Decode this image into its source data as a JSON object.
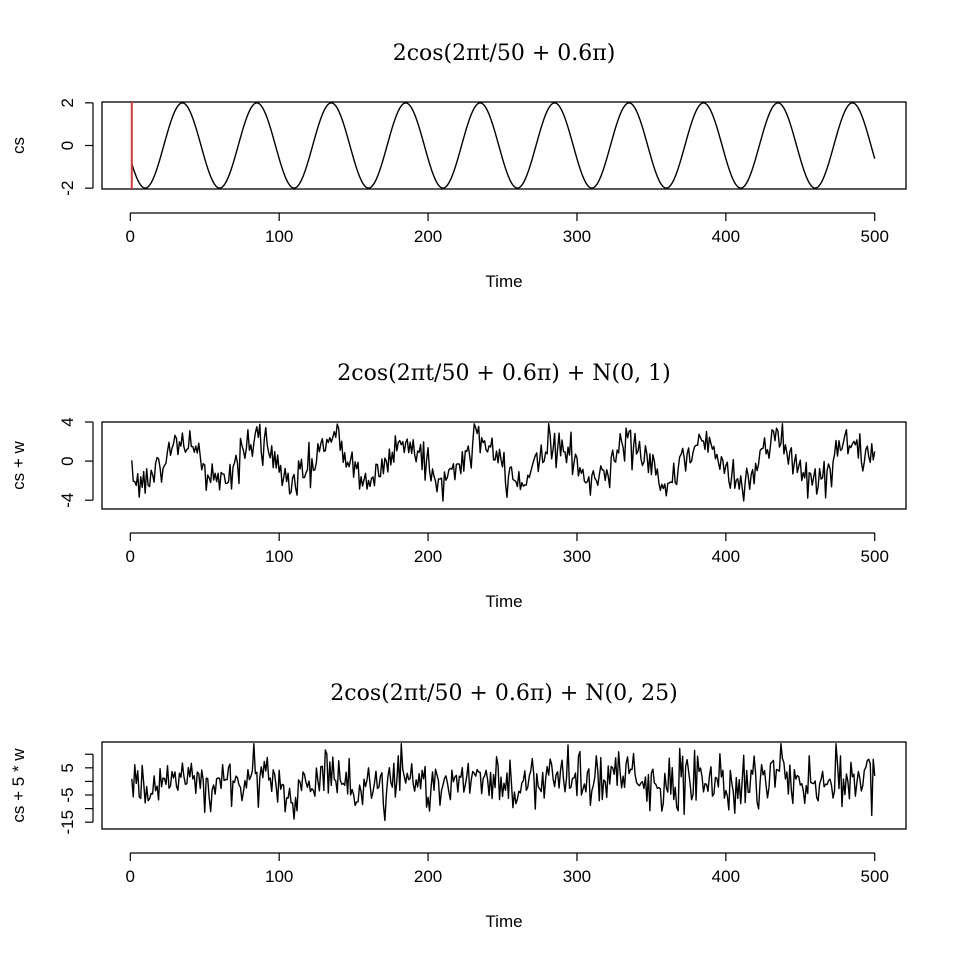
{
  "chart_data": [
    {
      "type": "line",
      "title": "2cos(2πt/50 + 0.6π)",
      "xlabel": "Time",
      "ylabel": "cs",
      "xlim": [
        -19,
        521
      ],
      "ylim": [
        -2.04,
        2.04
      ],
      "x_ticks": [
        0,
        100,
        200,
        300,
        400,
        500
      ],
      "y_ticks": [
        -2,
        0,
        2
      ],
      "grid": false,
      "n": 500,
      "signal": {
        "amplitude": 2,
        "period": 50,
        "phase_pi": 0.6
      },
      "noise_sd": 0,
      "vline": {
        "x": 1,
        "color": "#cd3b3b"
      },
      "line_color": "#000000"
    },
    {
      "type": "line",
      "title": "2cos(2πt/50 + 0.6π) + N(0, 1)",
      "xlabel": "Time",
      "ylabel": "cs + w",
      "xlim": [
        -19,
        521
      ],
      "ylim": [
        -4.9,
        4.0
      ],
      "x_ticks": [
        0,
        100,
        200,
        300,
        400,
        500
      ],
      "y_ticks": [
        -4,
        0,
        4
      ],
      "grid": false,
      "n": 500,
      "signal": {
        "amplitude": 2,
        "period": 50,
        "phase_pi": 0.6
      },
      "noise_sd": 1,
      "line_color": "#000000"
    },
    {
      "type": "line",
      "title": "2cos(2πt/50 + 0.6π) + N(0, 25)",
      "xlabel": "Time",
      "ylabel": "cs + 5 * w",
      "xlim": [
        -19,
        521
      ],
      "ylim": [
        -17.5,
        14.5
      ],
      "x_ticks": [
        0,
        100,
        200,
        300,
        400,
        500
      ],
      "y_ticks": [
        -15,
        -5,
        5
      ],
      "y_minor_ticks": [
        -10,
        0,
        10
      ],
      "grid": false,
      "n": 500,
      "signal": {
        "amplitude": 2,
        "period": 50,
        "phase_pi": 0.6
      },
      "noise_sd": 5,
      "line_color": "#000000"
    }
  ]
}
